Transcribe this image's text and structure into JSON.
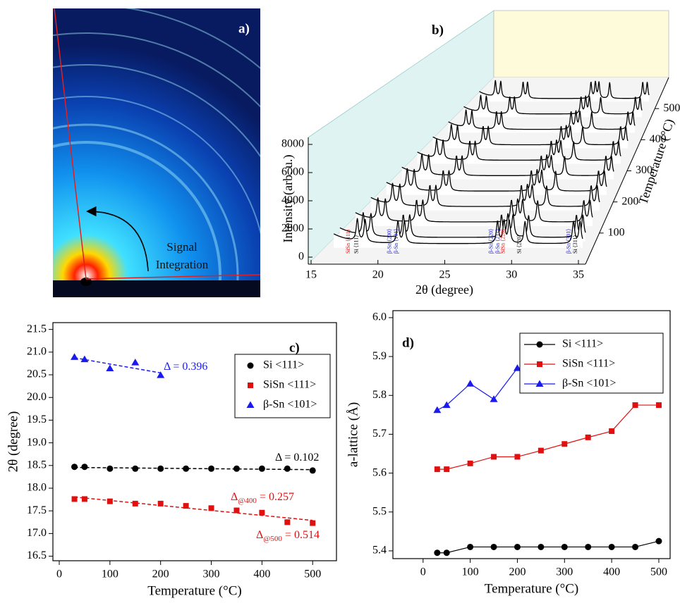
{
  "image_panel": {
    "label": "a)",
    "annotation": [
      "Signal",
      "Integration"
    ]
  },
  "chart_data": [
    {
      "type": "waterfall3d",
      "label": "b)",
      "xlabel": "2θ (degree)",
      "ylabel": "Intensity (arb. u.)",
      "zlabel": "Temperature (°C)",
      "xlim": [
        15,
        35
      ],
      "xticks": [
        15,
        20,
        25,
        30,
        35
      ],
      "yticks": [
        0,
        2000,
        4000,
        6000,
        8000
      ],
      "zlim": [
        0,
        600
      ],
      "zticks": [
        100,
        200,
        300,
        400,
        500
      ],
      "temperatures": [
        30,
        50,
        100,
        150,
        200,
        250,
        300,
        350,
        400,
        450,
        500
      ],
      "peaks": [
        {
          "label": "SiSn ⟨111⟩",
          "x": 17.8,
          "color": "#e01010"
        },
        {
          "label": "Si ⟨111⟩",
          "x": 18.4,
          "color": "#000000"
        },
        {
          "label": "β-Sn ⟨200⟩",
          "x": 20.9,
          "color": "#1a1acc"
        },
        {
          "label": "β-Sn ⟨101⟩",
          "x": 21.4,
          "color": "#1a1acc"
        },
        {
          "label": "β-Sn ⟨220⟩",
          "x": 28.5,
          "color": "#1a1acc"
        },
        {
          "label": "β-Sn ⟨211⟩",
          "x": 29.0,
          "color": "#1a1acc"
        },
        {
          "label": "SiSn ⟨220⟩",
          "x": 29.4,
          "color": "#e01010"
        },
        {
          "label": "Si ⟨220⟩",
          "x": 30.6,
          "color": "#000000"
        },
        {
          "label": "β-Sn ⟨301⟩",
          "x": 34.3,
          "color": "#1a1acc"
        },
        {
          "label": "Si ⟨311⟩",
          "x": 34.8,
          "color": "#000000"
        }
      ]
    },
    {
      "type": "scatter-fit",
      "label": "c)",
      "xlabel": "Temperature (°C)",
      "ylabel": "2θ (degree)",
      "x": [
        30,
        50,
        100,
        150,
        200,
        250,
        300,
        350,
        400,
        450,
        500
      ],
      "xlim": [
        -12.5,
        547
      ],
      "xticks": [
        0,
        100,
        200,
        300,
        400,
        500
      ],
      "ylim": [
        16.4,
        21.65
      ],
      "yticks": [
        16.5,
        {
          "value": 17,
          "label": "17.0"
        },
        17.5,
        {
          "value": 18,
          "label": "18.0"
        },
        18.5,
        {
          "value": 19,
          "label": "19.0"
        },
        19.5,
        {
          "value": 20,
          "label": "20.0"
        },
        20.5,
        {
          "value": 21,
          "label": "21.0"
        },
        21.5
      ],
      "series": [
        {
          "name": "Si <111>",
          "color": "#000000",
          "marker": "circle",
          "values": [
            18.47,
            18.47,
            18.43,
            18.43,
            18.43,
            18.43,
            18.43,
            18.43,
            18.43,
            18.43,
            18.39
          ]
        },
        {
          "name": "SiSn <111>",
          "color": "#e01010",
          "marker": "square",
          "values": [
            17.76,
            17.76,
            17.71,
            17.66,
            17.66,
            17.61,
            17.56,
            17.51,
            17.46,
            17.25,
            17.23
          ]
        },
        {
          "name": "β-Sn <101>",
          "color": "#1a1aee",
          "marker": "triangle",
          "values": [
            20.89,
            20.84,
            20.64,
            20.77,
            20.49,
            null,
            null,
            null,
            null,
            null,
            null
          ]
        }
      ],
      "annotations": [
        {
          "text": "Δ = 0.396",
          "color": "#1a1aee"
        },
        {
          "text": "Δ = 0.102",
          "color": "#000000"
        },
        {
          "text": "Δ",
          "sub": "@400",
          "after": " = 0.257",
          "color": "#e01010"
        },
        {
          "text": "Δ",
          "sub": "@500",
          "after": " = 0.514",
          "color": "#e01010"
        }
      ]
    },
    {
      "type": "line-marker",
      "label": "d)",
      "xlabel": "Temperature (°C)",
      "ylabel": "a-lattice (Å)",
      "x": [
        30,
        50,
        100,
        150,
        200,
        250,
        300,
        350,
        400,
        450,
        500
      ],
      "xlim": [
        -64,
        524
      ],
      "xticks": [
        0,
        100,
        200,
        300,
        400,
        500
      ],
      "ylim": [
        5.38,
        6.018
      ],
      "yticks": [
        5.4,
        5.5,
        5.6,
        5.7,
        5.8,
        5.9,
        {
          "value": 6,
          "label": "6.0"
        }
      ],
      "series": [
        {
          "name": "Si <111>",
          "color": "#000000",
          "marker": "circle",
          "values": [
            5.395,
            5.395,
            5.41,
            5.41,
            5.41,
            5.41,
            5.41,
            5.41,
            5.41,
            5.41,
            5.425
          ]
        },
        {
          "name": "SiSn <111>",
          "color": "#e01010",
          "marker": "square",
          "values": [
            5.61,
            5.61,
            5.625,
            5.642,
            5.642,
            5.658,
            5.675,
            5.692,
            5.708,
            5.775,
            5.775
          ]
        },
        {
          "name": "β-Sn <101>",
          "color": "#1a1aee",
          "marker": "triangle",
          "values": [
            5.762,
            5.775,
            5.83,
            5.79,
            5.87,
            null,
            null,
            null,
            null,
            null,
            null
          ]
        }
      ]
    }
  ]
}
